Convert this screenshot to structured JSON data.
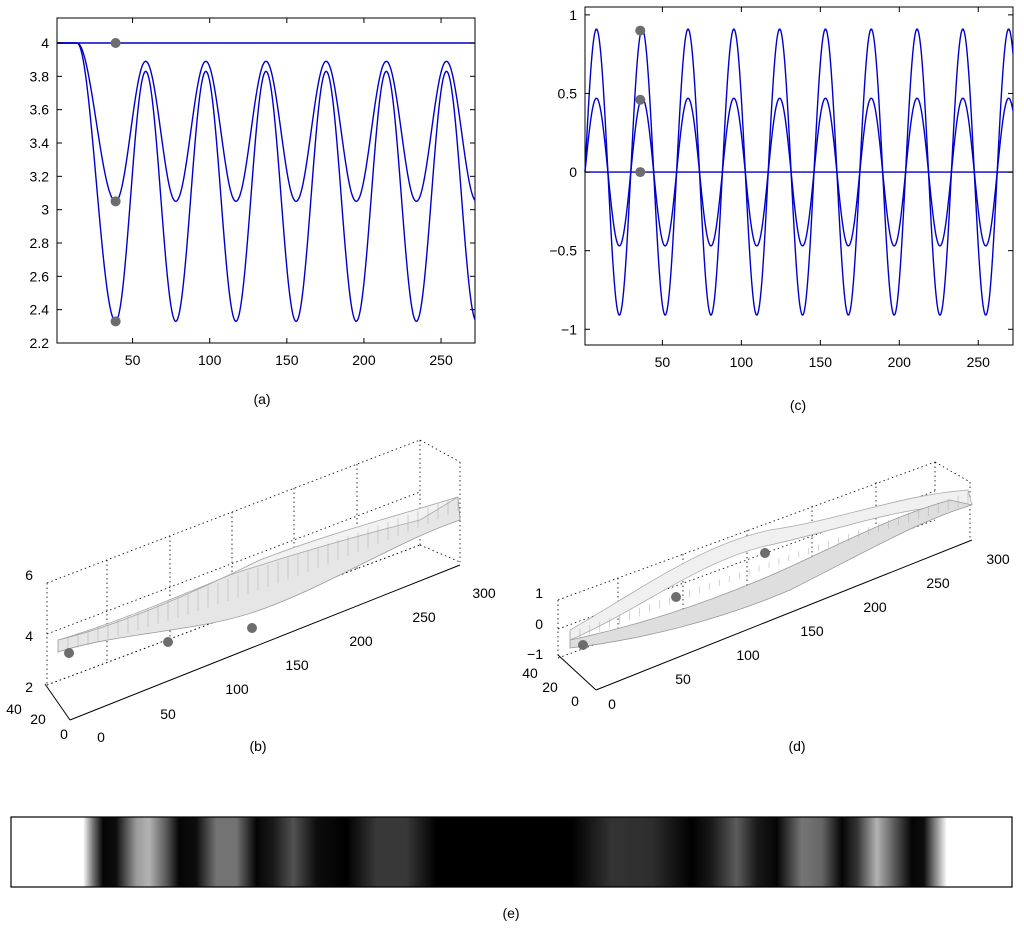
{
  "chart_data": [
    {
      "panel": "(a)",
      "type": "line",
      "caption": "(a)",
      "xlim": [
        1,
        272
      ],
      "ylim": [
        2.2,
        4.15
      ],
      "xticks": [
        50,
        100,
        150,
        200,
        250
      ],
      "yticks": [
        2.2,
        2.4,
        2.6,
        2.8,
        3,
        3.2,
        3.4,
        3.6,
        3.8,
        4
      ],
      "line_color": "#0000cc",
      "series": [
        {
          "model": "constant",
          "value": 4
        },
        {
          "model": "damped-oscillation",
          "start": 4,
          "onset": 14,
          "first_min_x": 39,
          "min": 3.05,
          "max": 3.89,
          "period": 39
        },
        {
          "model": "damped-oscillation",
          "start": 4,
          "onset": 14,
          "first_min_x": 39,
          "min": 2.33,
          "max": 3.83,
          "period": 39
        }
      ],
      "markers": [
        {
          "x": 39,
          "y": 4
        },
        {
          "x": 39,
          "y": 3.05
        },
        {
          "x": 39,
          "y": 2.33
        }
      ]
    },
    {
      "panel": "(c)",
      "type": "line",
      "caption": "(c)",
      "xlim": [
        1,
        272
      ],
      "ylim": [
        -1.1,
        1.05
      ],
      "xticks": [
        50,
        100,
        150,
        200,
        250
      ],
      "yticks": [
        -1,
        -0.5,
        0,
        0.5,
        1
      ],
      "line_color": "#0000cc",
      "series": [
        {
          "model": "constant",
          "value": 0
        },
        {
          "model": "sine",
          "amplitude": 0.47,
          "period": 29,
          "phase_x": 1
        },
        {
          "model": "sine",
          "amplitude": 0.91,
          "period": 29,
          "phase_x": 1
        }
      ],
      "markers": [
        {
          "x": 36,
          "y": 0.9
        },
        {
          "x": 36,
          "y": 0.46
        },
        {
          "x": 36,
          "y": 0
        }
      ]
    },
    {
      "panel": "(b)",
      "type": "surface",
      "caption": "(b)",
      "x_ticks": [
        0,
        50,
        100,
        150,
        200,
        250,
        300
      ],
      "y_ticks": [
        0,
        20,
        40
      ],
      "z_ticks": [
        2,
        4,
        6
      ]
    },
    {
      "panel": "(d)",
      "type": "surface",
      "caption": "(d)",
      "x_ticks": [
        0,
        50,
        100,
        150,
        200,
        250,
        300
      ],
      "y_ticks": [
        0,
        20,
        40
      ],
      "z_ticks": [
        -1,
        0,
        1
      ]
    },
    {
      "panel": "(e)",
      "type": "heatmap",
      "caption": "(e)",
      "colormap": "gray",
      "stops": [
        [
          0.0,
          1.0
        ],
        [
          0.072,
          1.0
        ],
        [
          0.082,
          0.45
        ],
        [
          0.092,
          0.02
        ],
        [
          0.105,
          0.05
        ],
        [
          0.125,
          0.6
        ],
        [
          0.138,
          0.7
        ],
        [
          0.155,
          0.35
        ],
        [
          0.168,
          0.02
        ],
        [
          0.185,
          0.05
        ],
        [
          0.205,
          0.45
        ],
        [
          0.225,
          0.45
        ],
        [
          0.245,
          0.02
        ],
        [
          0.262,
          0.1
        ],
        [
          0.282,
          0.32
        ],
        [
          0.305,
          0.05
        ],
        [
          0.335,
          0.0
        ],
        [
          0.365,
          0.22
        ],
        [
          0.395,
          0.22
        ],
        [
          0.425,
          0.0
        ],
        [
          0.52,
          0.0
        ],
        [
          0.56,
          0.0
        ],
        [
          0.6,
          0.2
        ],
        [
          0.64,
          0.18
        ],
        [
          0.68,
          0.0
        ],
        [
          0.7,
          0.1
        ],
        [
          0.725,
          0.36
        ],
        [
          0.745,
          0.1
        ],
        [
          0.765,
          0.02
        ],
        [
          0.79,
          0.46
        ],
        [
          0.81,
          0.4
        ],
        [
          0.83,
          0.02
        ],
        [
          0.845,
          0.2
        ],
        [
          0.865,
          0.7
        ],
        [
          0.885,
          0.3
        ],
        [
          0.9,
          0.02
        ],
        [
          0.912,
          0.05
        ],
        [
          0.935,
          1.0
        ],
        [
          1.0,
          1.0
        ]
      ]
    }
  ]
}
